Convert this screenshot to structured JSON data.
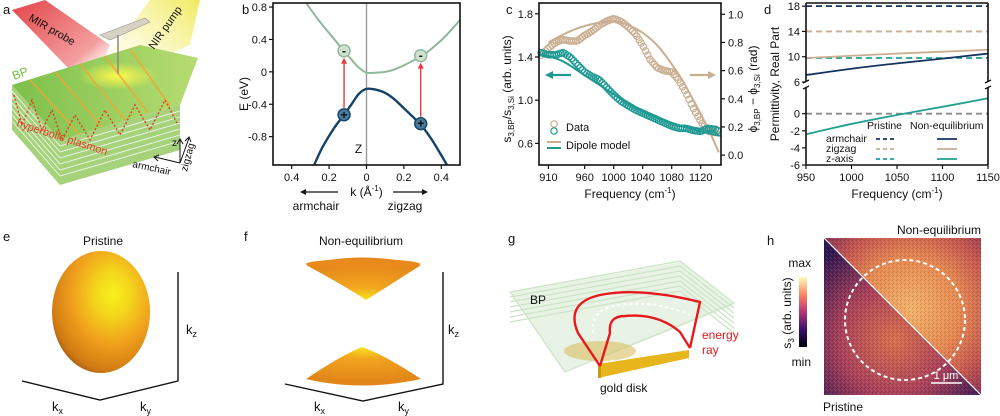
{
  "figure": {
    "panels": {
      "a": {
        "label": "a",
        "texts": {
          "mir_probe": "MIR probe",
          "nir_pump": "NIR pump",
          "bp": "BP",
          "hyperbolic_plasmon": "hyperbolic plasmon",
          "z": "z",
          "armchair": "armchair",
          "zigzag": "zigzag"
        },
        "colors": {
          "probe": "#e8393c",
          "pump": "#f2ea5a",
          "bp_layers": "#8cc75a",
          "plasmon": "#e53a2a"
        }
      },
      "b": {
        "label": "b"
      },
      "c": {
        "label": "c"
      },
      "d": {
        "label": "d"
      },
      "e": {
        "label": "e",
        "title": "Pristine",
        "axes": {
          "kx": "k",
          "kx_sub": "x",
          "ky": "k",
          "ky_sub": "y",
          "kz": "k",
          "kz_sub": "z"
        },
        "colors": {
          "surface_light": "#f4ee1e",
          "surface_mid": "#f0a21c",
          "surface_dark": "#9c5410"
        }
      },
      "f": {
        "label": "f",
        "title": "Non-equilibrium",
        "axes": {
          "kx": "k",
          "kx_sub": "x",
          "ky": "k",
          "ky_sub": "y",
          "kz": "k",
          "kz_sub": "z"
        }
      },
      "g": {
        "label": "g",
        "texts": {
          "bp": "BP",
          "energy": "energy",
          "ray": "ray",
          "gold_disk": "gold disk"
        },
        "colors": {
          "ray": "#e8191c",
          "gold": "#e7b51c",
          "bp_layers": "#b8d8a8"
        }
      },
      "h": {
        "label": "h",
        "top_label": "Non-equilibrium",
        "bottom_label": "Pristine",
        "colorbar": {
          "label": "s",
          "label_sub": "3",
          "label_rest": " (arb. units)",
          "max": "max",
          "min": "min"
        },
        "scale_bar": "1 μm"
      }
    }
  },
  "chart_data": [
    {
      "id": "b",
      "type": "line",
      "title": "",
      "xlabel": "k (Å⁻¹)",
      "xlabel_main": "k (Å",
      "xlabel_sup": "-1",
      "xlabel_end": ")",
      "ylabel": "E (eV)",
      "xlim": [
        -0.5,
        0.5
      ],
      "ylim": [
        -1.15,
        0.85
      ],
      "xticks": [
        -0.4,
        -0.2,
        0,
        0.2,
        0.4
      ],
      "xtick_labels": [
        "0.4",
        "0.2",
        "0",
        "0.2",
        "0.4"
      ],
      "yticks": [
        0.8,
        0.4,
        0,
        -0.4,
        -0.8
      ],
      "ytick_labels": [
        "0.8",
        "0.4",
        "0",
        "-0.4",
        "-0.8"
      ],
      "annotations": {
        "z_point": "Z",
        "left_arrow": "armchair",
        "right_arrow": "zigzag"
      },
      "series": [
        {
          "name": "conduction band",
          "color": "#8fb899",
          "x": [
            -0.32,
            -0.25,
            -0.2,
            -0.15,
            -0.12,
            -0.08,
            -0.04,
            0,
            0.05,
            0.1,
            0.15,
            0.2,
            0.25,
            0.3,
            0.35,
            0.4,
            0.45,
            0.5
          ],
          "y": [
            0.84,
            0.62,
            0.48,
            0.34,
            0.26,
            0.15,
            0.05,
            -0.01,
            -0.01,
            0.0,
            0.03,
            0.08,
            0.14,
            0.2,
            0.29,
            0.39,
            0.51,
            0.64
          ]
        },
        {
          "name": "valence band",
          "color": "#13436b",
          "x": [
            -0.28,
            -0.24,
            -0.2,
            -0.16,
            -0.12,
            -0.08,
            -0.04,
            0,
            0.05,
            0.1,
            0.15,
            0.2,
            0.25,
            0.3,
            0.35,
            0.4,
            0.43
          ],
          "y": [
            -1.15,
            -0.95,
            -0.79,
            -0.65,
            -0.53,
            -0.4,
            -0.27,
            -0.21,
            -0.22,
            -0.26,
            -0.34,
            -0.45,
            -0.56,
            -0.68,
            -0.84,
            -1.03,
            -1.15
          ]
        }
      ],
      "transitions": [
        {
          "k": -0.12,
          "from": -0.53,
          "to": 0.26,
          "hole": "+",
          "electron": "-"
        },
        {
          "k": 0.29,
          "from": -0.64,
          "to": 0.2,
          "hole": "+",
          "electron": "-"
        }
      ],
      "colors": {
        "arrow": "#e8393c",
        "zero_line": "#9a9a9a"
      }
    },
    {
      "id": "c",
      "type": "scatter",
      "xlabel": "Frequency (cm⁻¹)",
      "xlabel_main": "Frequency (cm",
      "xlabel_sup": "-1",
      "xlabel_end": ")",
      "ylabel_left": "s3,BP/s3,Si (arb. units)",
      "ylabel_right": "ϕ3,BP − ϕ3,Si (rad)",
      "xlim": [
        897,
        1148
      ],
      "ylim_left": [
        0.4,
        1.9
      ],
      "ylim_right": [
        -0.07,
        1.08
      ],
      "xticks": [
        910,
        960,
        1000,
        1040,
        1080,
        1120
      ],
      "yticks_left": [
        0.6,
        1.0,
        1.4,
        1.8
      ],
      "yticks_right": [
        0.0,
        0.2,
        0.4,
        0.6,
        0.8,
        1.0
      ],
      "ytick_labels_left": [
        "0.6",
        "1.0",
        "1.4",
        "1.8"
      ],
      "ytick_labels_right": [
        "0.0",
        "0.2",
        "0.4",
        "0.6",
        "0.8",
        "1.0"
      ],
      "legend": {
        "position": "bottom-left",
        "entries": [
          "Data",
          "Dipole model"
        ]
      },
      "series": [
        {
          "name": "Phase data",
          "axis": "right",
          "kind": "markers",
          "color": "#c9ae91",
          "x": [
            900,
            910,
            920,
            930,
            940,
            950,
            960,
            970,
            980,
            990,
            1000,
            1010,
            1020,
            1030,
            1040,
            1050,
            1060,
            1070,
            1080,
            1090,
            1100,
            1110,
            1120,
            1130,
            1140,
            1145
          ],
          "y": [
            0.71,
            0.76,
            0.8,
            0.82,
            0.81,
            0.81,
            0.85,
            0.88,
            0.92,
            0.95,
            0.97,
            0.95,
            0.91,
            0.86,
            0.78,
            0.68,
            0.62,
            0.6,
            0.59,
            0.53,
            0.44,
            0.33,
            0.24,
            0.17,
            0.16,
            0.19
          ]
        },
        {
          "name": "Phase dipole model",
          "axis": "right",
          "kind": "line",
          "color": "#c9ae91",
          "x": [
            910,
            940,
            970,
            1000,
            1030,
            1060,
            1090,
            1110,
            1130,
            1145
          ],
          "y": [
            0.8,
            0.88,
            0.93,
            0.95,
            0.9,
            0.78,
            0.57,
            0.39,
            0.19,
            0.02
          ]
        },
        {
          "name": "Amplitude data",
          "axis": "left",
          "kind": "markers",
          "color": "#1f9a93",
          "x": [
            900,
            910,
            920,
            930,
            940,
            950,
            960,
            970,
            980,
            990,
            1000,
            1010,
            1020,
            1030,
            1040,
            1050,
            1060,
            1070,
            1080,
            1090,
            1100,
            1110,
            1120,
            1130,
            1140,
            1145
          ],
          "y": [
            1.44,
            1.42,
            1.42,
            1.44,
            1.4,
            1.33,
            1.26,
            1.22,
            1.19,
            1.12,
            1.05,
            0.99,
            0.95,
            0.91,
            0.88,
            0.85,
            0.82,
            0.79,
            0.76,
            0.74,
            0.74,
            0.72,
            0.71,
            0.74,
            0.73,
            0.71
          ]
        },
        {
          "name": "Amplitude dipole model",
          "axis": "left",
          "kind": "line",
          "color": "#1f9a93",
          "x": [
            900,
            930,
            960,
            990,
            1020,
            1050,
            1080,
            1110,
            1140,
            1148
          ],
          "y": [
            1.43,
            1.36,
            1.23,
            1.1,
            0.97,
            0.87,
            0.79,
            0.73,
            0.68,
            0.67
          ]
        }
      ],
      "arrows": [
        {
          "direction": "left",
          "color": "#1f9a93"
        },
        {
          "direction": "right",
          "color": "#c9ae91"
        }
      ]
    },
    {
      "id": "d",
      "type": "line",
      "xlabel": "Frequency (cm⁻¹)",
      "xlabel_main": "Frequency (cm",
      "xlabel_sup": "-1",
      "xlabel_end": ")",
      "ylabel": "Permittivity, Real Part",
      "xlim": [
        950,
        1150
      ],
      "ylim_upper": [
        6,
        18.5
      ],
      "ylim_lower": [
        -6,
        3
      ],
      "axis_break": true,
      "xticks": [
        950,
        1000,
        1050,
        1100,
        1150
      ],
      "yticks_upper": [
        6,
        10,
        14,
        18
      ],
      "yticks_lower": [
        -6,
        -4,
        -2,
        0
      ],
      "legend": {
        "position": "bottom-right",
        "columns": [
          "Pristine",
          "Non-equilibrium"
        ],
        "rows": [
          "armchair",
          "zigzag",
          "z-axis"
        ]
      },
      "series": [
        {
          "name": "armchair pristine",
          "style": "dashed",
          "color": "#13355f",
          "x": [
            950,
            1150
          ],
          "y": [
            18,
            18
          ]
        },
        {
          "name": "zigzag pristine",
          "style": "dashed",
          "color": "#c9ae91",
          "x": [
            950,
            1150
          ],
          "y": [
            14,
            14
          ]
        },
        {
          "name": "z-axis pristine",
          "style": "dashed",
          "color": "#21a191",
          "x": [
            950,
            1150
          ],
          "y": [
            9.8,
            9.8
          ]
        },
        {
          "name": "zero reference",
          "style": "dashed",
          "color": "#8a8a8a",
          "x": [
            950,
            1150
          ],
          "y": [
            0,
            0
          ]
        },
        {
          "name": "armchair non-equilibrium",
          "style": "solid",
          "color": "#13355f",
          "x": [
            950,
            1000,
            1050,
            1100,
            1150
          ],
          "y": [
            7.1,
            8.1,
            8.95,
            9.7,
            10.5
          ]
        },
        {
          "name": "zigzag non-equilibrium",
          "style": "solid",
          "color": "#c9ae91",
          "x": [
            950,
            1000,
            1050,
            1100,
            1150
          ],
          "y": [
            9.8,
            10.15,
            10.5,
            10.8,
            11.1
          ]
        },
        {
          "name": "z-axis non-equilibrium",
          "style": "solid",
          "color": "#21a191",
          "x": [
            950,
            1000,
            1050,
            1100,
            1150
          ],
          "y": [
            -2.4,
            -1.2,
            -0.15,
            0.8,
            1.8
          ]
        }
      ]
    }
  ]
}
